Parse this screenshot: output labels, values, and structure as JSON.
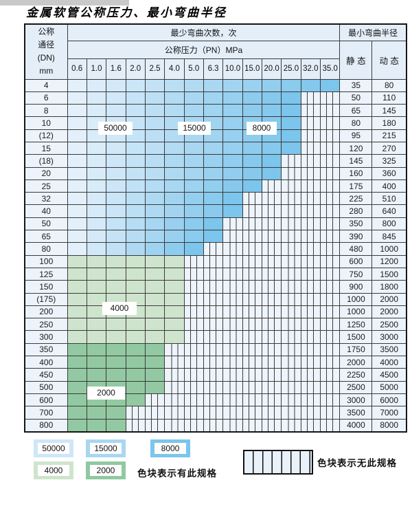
{
  "title": "金属软管公称压力、最小弯曲半径",
  "table": {
    "header": {
      "dn_lines": {
        "l1": "公称",
        "l2": "通径",
        "l3": "(DN)",
        "l4": "mm"
      },
      "bend_cycles_label": "最少弯曲次数，次",
      "pressure_label": "公称压力（PN）MPa",
      "radius_label": "最小弯曲半径",
      "static_label": "静 态",
      "dynamic_label": "动 态",
      "pn_values": [
        "0.6",
        "1.0",
        "1.6",
        "2.0",
        "2.5",
        "4.0",
        "5.0",
        "6.3",
        "10.0",
        "15.0",
        "20.0",
        "25.0",
        "32.0",
        "35.0"
      ]
    },
    "rows": [
      {
        "dn": "4",
        "colored": 14,
        "zone": "blue",
        "static": "35",
        "dynamic": "80"
      },
      {
        "dn": "6",
        "colored": 12,
        "zone": "blue",
        "static": "50",
        "dynamic": "110"
      },
      {
        "dn": "8",
        "colored": 12,
        "zone": "blue",
        "static": "65",
        "dynamic": "145"
      },
      {
        "dn": "10",
        "colored": 12,
        "zone": "blue",
        "static": "80",
        "dynamic": "180"
      },
      {
        "dn": "(12)",
        "colored": 12,
        "zone": "blue",
        "static": "95",
        "dynamic": "215"
      },
      {
        "dn": "15",
        "colored": 12,
        "zone": "blue",
        "static": "120",
        "dynamic": "270"
      },
      {
        "dn": "(18)",
        "colored": 11,
        "zone": "blue",
        "static": "145",
        "dynamic": "325"
      },
      {
        "dn": "20",
        "colored": 11,
        "zone": "blue",
        "static": "160",
        "dynamic": "360"
      },
      {
        "dn": "25",
        "colored": 10,
        "zone": "blue",
        "static": "175",
        "dynamic": "400"
      },
      {
        "dn": "32",
        "colored": 9,
        "zone": "blue",
        "static": "225",
        "dynamic": "510"
      },
      {
        "dn": "40",
        "colored": 9,
        "zone": "blue",
        "static": "280",
        "dynamic": "640"
      },
      {
        "dn": "50",
        "colored": 8,
        "zone": "blue",
        "static": "350",
        "dynamic": "800"
      },
      {
        "dn": "65",
        "colored": 8,
        "zone": "blue",
        "static": "390",
        "dynamic": "845"
      },
      {
        "dn": "80",
        "colored": 7,
        "zone": "blue",
        "static": "480",
        "dynamic": "1000"
      },
      {
        "dn": "100",
        "colored": 6,
        "zone": "green-light",
        "static": "600",
        "dynamic": "1200"
      },
      {
        "dn": "125",
        "colored": 6,
        "zone": "green-light",
        "static": "750",
        "dynamic": "1500"
      },
      {
        "dn": "150",
        "colored": 6,
        "zone": "green-light",
        "static": "900",
        "dynamic": "1800"
      },
      {
        "dn": "(175)",
        "colored": 6,
        "zone": "green-light",
        "static": "1000",
        "dynamic": "2000"
      },
      {
        "dn": "200",
        "colored": 6,
        "zone": "green-light",
        "static": "1000",
        "dynamic": "2000"
      },
      {
        "dn": "250",
        "colored": 6,
        "zone": "green-light",
        "static": "1250",
        "dynamic": "2500"
      },
      {
        "dn": "300",
        "colored": 6,
        "zone": "green-light",
        "static": "1500",
        "dynamic": "3000"
      },
      {
        "dn": "350",
        "colored": 5,
        "zone": "green-dark",
        "static": "1750",
        "dynamic": "3500"
      },
      {
        "dn": "400",
        "colored": 5,
        "zone": "green-dark",
        "static": "2000",
        "dynamic": "4000"
      },
      {
        "dn": "450",
        "colored": 5,
        "zone": "green-dark",
        "static": "2250",
        "dynamic": "4500"
      },
      {
        "dn": "500",
        "colored": 5,
        "zone": "green-dark",
        "static": "2500",
        "dynamic": "5000"
      },
      {
        "dn": "600",
        "colored": 4,
        "zone": "green-dark",
        "static": "3000",
        "dynamic": "6000"
      },
      {
        "dn": "700",
        "colored": 3,
        "zone": "green-dark",
        "static": "3500",
        "dynamic": "7000"
      },
      {
        "dn": "800",
        "colored": 3,
        "zone": "green-dark",
        "static": "4000",
        "dynamic": "8000"
      }
    ],
    "region_labels": {
      "cycles_50000": "50000",
      "cycles_15000": "15000",
      "cycles_8000": "8000",
      "cycles_4000": "4000",
      "cycles_2000": "2000"
    }
  },
  "legend": {
    "items": [
      {
        "label": "50000",
        "color": "#cfe6f8"
      },
      {
        "label": "15000",
        "color": "#a9d7f2"
      },
      {
        "label": "8000",
        "color": "#7cc5ec"
      },
      {
        "label": "4000",
        "color": "#cfe4cd"
      },
      {
        "label": "2000",
        "color": "#8fc9a0"
      }
    ],
    "has_spec_text": "色块表示有此规格",
    "no_spec_text": "色块表示无此规格"
  },
  "colors": {
    "blue_light": "#e3f0fb",
    "blue_mid": "#a9d7f2",
    "blue_dark": "#7cc5ec",
    "green_light": "#cfe4cd",
    "green_dark": "#93c9a2",
    "header_bg": "#e4eef8",
    "label_col_bg": "#ecf3fb",
    "grid_line": "#3a3a3a"
  }
}
